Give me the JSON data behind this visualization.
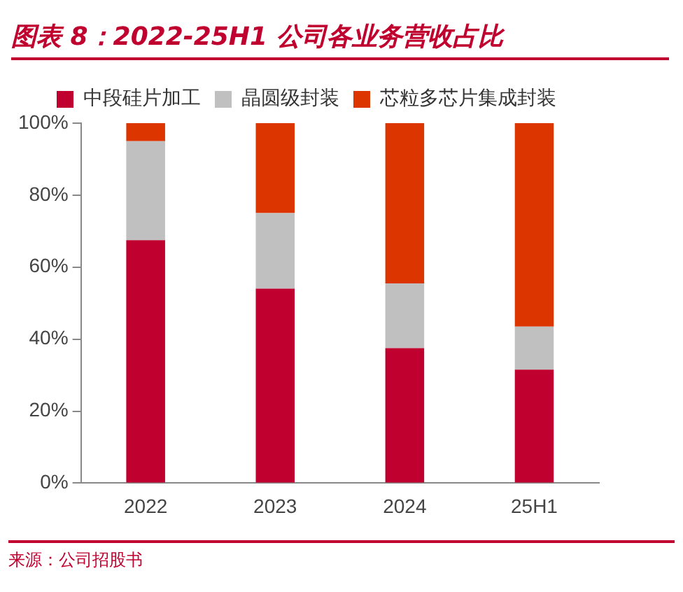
{
  "chart_data": {
    "type": "bar",
    "title": "图表 8：2022-25H1 公司各业务营收占比",
    "categories": [
      "2022",
      "2023",
      "2024",
      "25H1"
    ],
    "stacked": true,
    "series": [
      {
        "name": "中段硅片加工",
        "color": "#c0002f",
        "values": [
          67.5,
          54,
          37.5,
          31.5
        ]
      },
      {
        "name": "晶圆级封装",
        "color": "#c0c0c0",
        "values": [
          27.5,
          21,
          18,
          12
        ]
      },
      {
        "name": "芯粒多芯片集成封装",
        "color": "#dc3500",
        "values": [
          5,
          25,
          44.5,
          56.5
        ]
      }
    ],
    "ylim": [
      0,
      100
    ],
    "yticks": [
      {
        "value": 0,
        "label": "0%"
      },
      {
        "value": 20,
        "label": "20%"
      },
      {
        "value": 40,
        "label": "40%"
      },
      {
        "value": 60,
        "label": "60%"
      },
      {
        "value": 80,
        "label": "80%"
      },
      {
        "value": 100,
        "label": "100%"
      }
    ],
    "grid": false,
    "legend": "top",
    "annotations": [
      "来源：公司招股书"
    ]
  }
}
